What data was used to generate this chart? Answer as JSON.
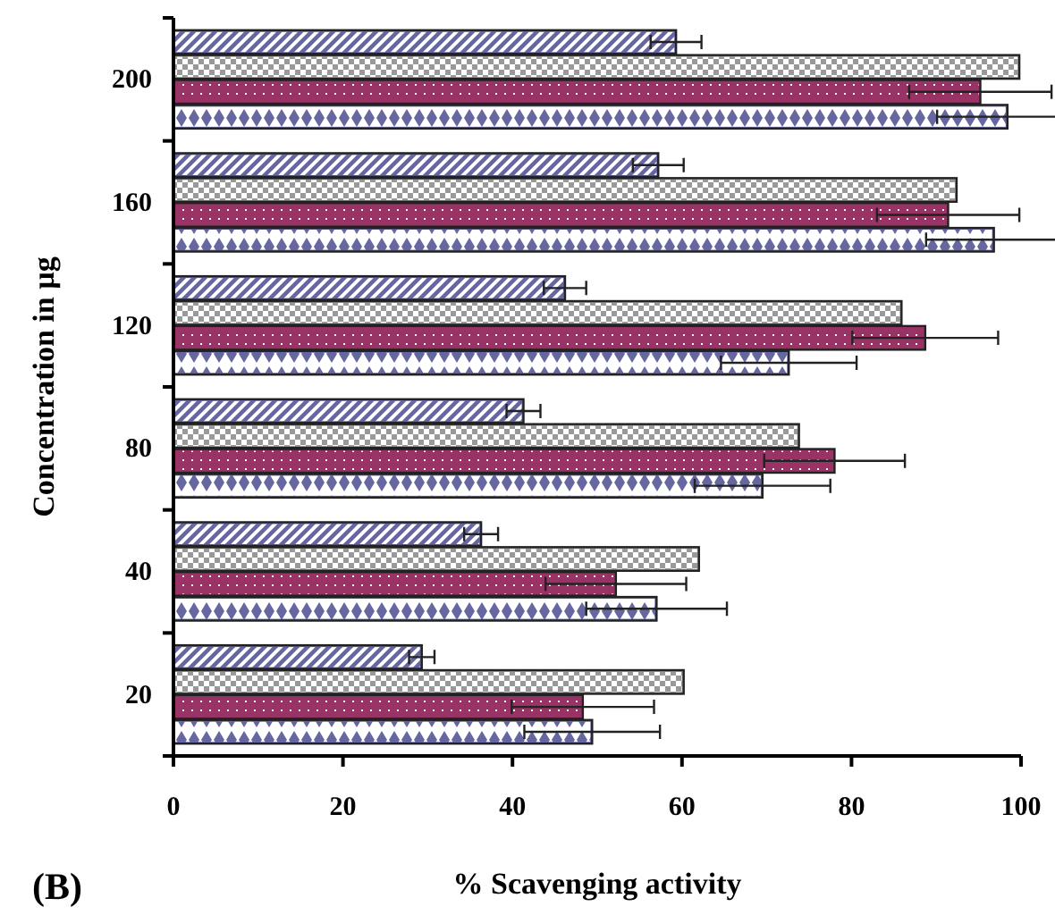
{
  "chart_data": {
    "type": "bar",
    "orientation": "horizontal",
    "xlabel": "% Scavenging activity",
    "ylabel": "Concentration in µg",
    "annotations": [
      "(B)"
    ],
    "categories": [
      "200",
      "160",
      "120",
      "80",
      "40",
      "20"
    ],
    "xlim": [
      0,
      100
    ],
    "xticks": [
      0,
      20,
      40,
      60,
      80,
      100
    ],
    "grid": false,
    "series": [
      {
        "color": "#6666a0",
        "values": [
          59.3,
          57.2,
          46.2,
          41.3,
          36.3,
          29.3
        ],
        "errors": [
          3,
          3,
          2.5,
          2,
          2,
          1.5
        ]
      },
      {
        "color": "#999999",
        "values": [
          99.8,
          92.4,
          85.9,
          73.8,
          62.0,
          60.2
        ]
      },
      {
        "color": "#993366",
        "values": [
          95.2,
          91.4,
          88.7,
          78.0,
          52.2,
          48.3
        ],
        "errors": [
          8.4,
          8.4,
          8.6,
          8.3,
          8.3,
          8.4
        ]
      },
      {
        "color": "#6666a0",
        "values": [
          98.4,
          96.8,
          72.6,
          69.5,
          57.0,
          49.4
        ],
        "errors": [
          8.3,
          8,
          8,
          8,
          8.3,
          8
        ]
      }
    ]
  }
}
